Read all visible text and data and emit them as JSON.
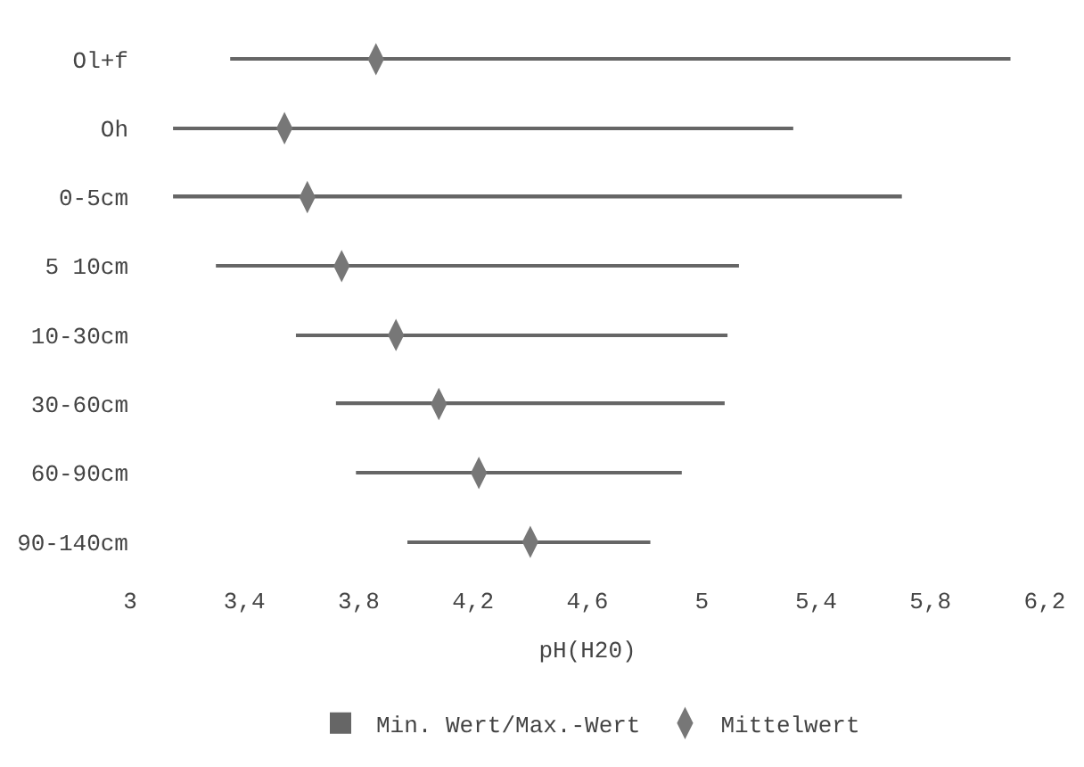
{
  "chart_data": {
    "type": "bar",
    "orientation": "horizontal",
    "xlabel": "pH(H20)",
    "categories": [
      "Ol+f",
      "Oh",
      "0-5cm",
      "5 10cm",
      "10-30cm",
      "30-60cm",
      "60-90cm",
      "90-140cm"
    ],
    "series": [
      {
        "name": "Min. Wert/Max.-Wert",
        "type": "bar",
        "color": "#666666",
        "base": [
          3.35,
          3.15,
          3.15,
          3.3,
          3.58,
          3.72,
          3.79,
          3.97
        ],
        "values": [
          2.73,
          2.17,
          2.55,
          1.83,
          1.51,
          1.36,
          1.14,
          0.85
        ]
      },
      {
        "name": "Mittelwert",
        "type": "scatter",
        "color": "#777777",
        "values": [
          3.86,
          3.54,
          3.62,
          3.74,
          3.93,
          4.08,
          4.22,
          4.4
        ]
      }
    ],
    "marker": "diamond",
    "xlim": [
      3,
      6.2
    ],
    "xticks": [
      3,
      {
        "value": 3.4,
        "label": "3,4"
      },
      {
        "value": 3.8,
        "label": "3,8"
      },
      {
        "value": 4.2,
        "label": "4,2"
      },
      {
        "value": 4.6,
        "label": "4,6"
      },
      5,
      {
        "value": 5.4,
        "label": "5,4"
      },
      {
        "value": 5.8,
        "label": "5,8"
      },
      {
        "value": 6.2,
        "label": "6,2"
      }
    ],
    "legend": "bottom"
  }
}
